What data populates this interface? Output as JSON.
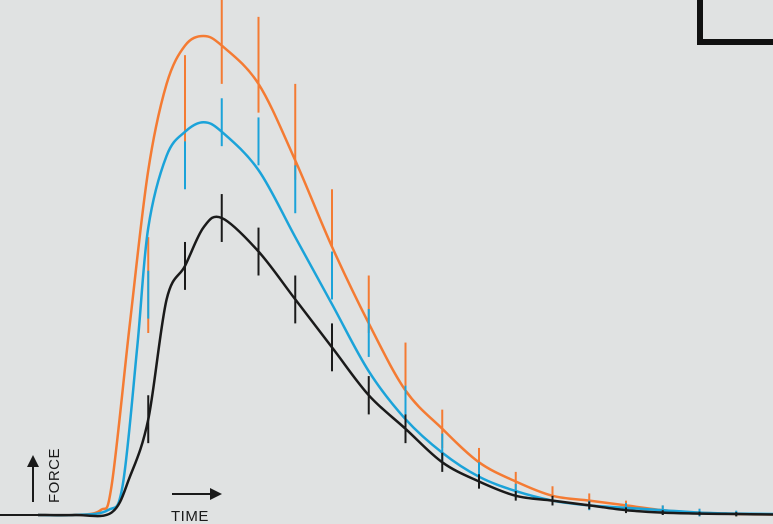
{
  "chart_data": {
    "type": "line",
    "title": "",
    "xlabel": "TIME",
    "ylabel": "FORCE",
    "grid": false,
    "legend": "none",
    "xlim": [
      0,
      20
    ],
    "ylim": [
      0,
      1
    ],
    "series": [
      {
        "color": "#f47b33",
        "curve": [
          [
            0,
            0
          ],
          [
            1,
            0
          ],
          [
            1.7,
            0.01
          ],
          [
            2,
            0.06
          ],
          [
            2.5,
            0.4
          ],
          [
            3,
            0.72
          ],
          [
            3.5,
            0.9
          ],
          [
            4,
            0.98
          ],
          [
            4.5,
            1.0
          ],
          [
            5,
            0.98
          ],
          [
            6,
            0.9
          ],
          [
            7,
            0.74
          ],
          [
            8,
            0.56
          ],
          [
            9,
            0.4
          ],
          [
            10,
            0.26
          ],
          [
            11,
            0.18
          ],
          [
            12,
            0.11
          ],
          [
            13,
            0.07
          ],
          [
            14,
            0.04
          ],
          [
            15,
            0.03
          ],
          [
            16,
            0.02
          ],
          [
            17,
            0.01
          ],
          [
            18,
            0.005
          ],
          [
            19,
            0.002
          ],
          [
            20,
            0.001
          ]
        ],
        "x": [
          3,
          4,
          5,
          6,
          7,
          8,
          9,
          10,
          11,
          12,
          13,
          14,
          15,
          16,
          17,
          18,
          19
        ],
        "values": [
          0.48,
          0.86,
          1.0,
          0.94,
          0.8,
          0.62,
          0.44,
          0.3,
          0.18,
          0.11,
          0.07,
          0.04,
          0.03,
          0.02,
          0.01,
          0.005,
          0.002
        ],
        "error": [
          0.1,
          0.1,
          0.1,
          0.1,
          0.1,
          0.06,
          0.06,
          0.06,
          0.04,
          0.03,
          0.02,
          0.02,
          0.015,
          0.01,
          0.01,
          0.008,
          0.006
        ]
      },
      {
        "color": "#1ba3d9",
        "curve": [
          [
            0,
            0
          ],
          [
            1,
            0
          ],
          [
            1.9,
            0.01
          ],
          [
            2.3,
            0.06
          ],
          [
            2.7,
            0.35
          ],
          [
            3,
            0.6
          ],
          [
            3.5,
            0.75
          ],
          [
            4,
            0.8
          ],
          [
            4.5,
            0.82
          ],
          [
            5,
            0.8
          ],
          [
            6,
            0.72
          ],
          [
            7,
            0.58
          ],
          [
            8,
            0.44
          ],
          [
            9,
            0.3
          ],
          [
            10,
            0.2
          ],
          [
            11,
            0.13
          ],
          [
            12,
            0.08
          ],
          [
            13,
            0.05
          ],
          [
            14,
            0.03
          ],
          [
            15,
            0.02
          ],
          [
            16,
            0.015
          ],
          [
            17,
            0.01
          ],
          [
            18,
            0.005
          ],
          [
            19,
            0.003
          ],
          [
            20,
            0.002
          ]
        ],
        "x": [
          3,
          4,
          5,
          6,
          7,
          8,
          9,
          10,
          11,
          12,
          13,
          14,
          15,
          16,
          17,
          18,
          19
        ],
        "values": [
          0.46,
          0.73,
          0.82,
          0.78,
          0.68,
          0.5,
          0.38,
          0.23,
          0.14,
          0.09,
          0.05,
          0.03,
          0.02,
          0.015,
          0.01,
          0.005,
          0.003
        ],
        "error": [
          0.05,
          0.05,
          0.05,
          0.05,
          0.05,
          0.05,
          0.05,
          0.04,
          0.03,
          0.02,
          0.015,
          0.01,
          0.01,
          0.01,
          0.01,
          0.008,
          0.006
        ]
      },
      {
        "color": "#1a1a1a",
        "curve": [
          [
            0,
            0
          ],
          [
            1,
            0
          ],
          [
            2,
            0.005
          ],
          [
            2.5,
            0.08
          ],
          [
            3,
            0.2
          ],
          [
            3.5,
            0.45
          ],
          [
            4,
            0.52
          ],
          [
            4.5,
            0.6
          ],
          [
            5,
            0.62
          ],
          [
            6,
            0.55
          ],
          [
            7,
            0.45
          ],
          [
            8,
            0.35
          ],
          [
            9,
            0.25
          ],
          [
            10,
            0.18
          ],
          [
            11,
            0.11
          ],
          [
            12,
            0.07
          ],
          [
            13,
            0.04
          ],
          [
            14,
            0.03
          ],
          [
            15,
            0.02
          ],
          [
            16,
            0.01
          ],
          [
            17,
            0.005
          ],
          [
            18,
            0.003
          ],
          [
            19,
            0.002
          ],
          [
            20,
            0.001
          ]
        ],
        "x": [
          3,
          4,
          5,
          6,
          7,
          8,
          9,
          10,
          11,
          12,
          13,
          14,
          15,
          16,
          17,
          18,
          19
        ],
        "values": [
          0.2,
          0.52,
          0.62,
          0.55,
          0.45,
          0.35,
          0.25,
          0.18,
          0.11,
          0.07,
          0.04,
          0.03,
          0.02,
          0.01,
          0.005,
          0.003,
          0.002
        ],
        "error": [
          0.05,
          0.05,
          0.05,
          0.05,
          0.05,
          0.05,
          0.04,
          0.03,
          0.02,
          0.015,
          0.01,
          0.01,
          0.008,
          0.006,
          0.005,
          0.004,
          0.004
        ]
      }
    ]
  }
}
